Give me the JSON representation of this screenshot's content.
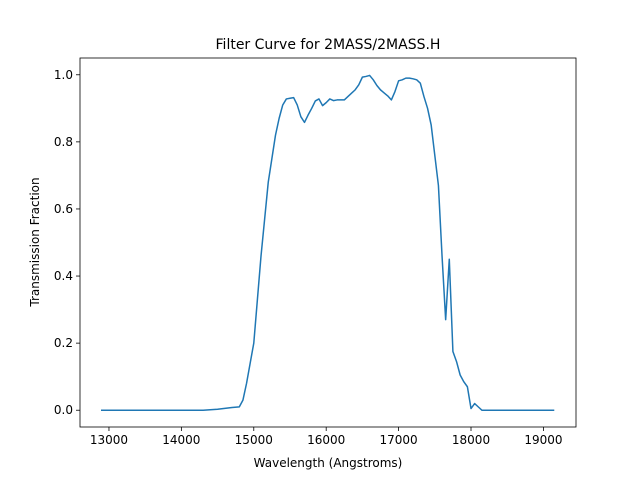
{
  "chart_data": {
    "type": "line",
    "title": "Filter Curve for 2MASS/2MASS.H",
    "xlabel": "Wavelength (Angstroms)",
    "ylabel": "Transmission Fraction",
    "xlim": [
      12600,
      19450
    ],
    "ylim": [
      -0.05,
      1.05
    ],
    "xticks": [
      13000,
      14000,
      15000,
      16000,
      17000,
      18000,
      19000
    ],
    "yticks": [
      0.0,
      0.2,
      0.4,
      0.6,
      0.8,
      1.0
    ],
    "xtick_labels": [
      "13000",
      "14000",
      "15000",
      "16000",
      "17000",
      "18000",
      "19000"
    ],
    "ytick_labels": [
      "0.0",
      "0.2",
      "0.4",
      "0.6",
      "0.8",
      "1.0"
    ],
    "grid": false,
    "line_color": "#1f77b4",
    "series": [
      {
        "x": [
          12890,
          13500,
          14000,
          14300,
          14500,
          14700,
          14800,
          14850,
          14900,
          14950,
          15000,
          15050,
          15100,
          15150,
          15200,
          15250,
          15300,
          15350,
          15400,
          15450,
          15500,
          15550,
          15600,
          15650,
          15700,
          15750,
          15800,
          15850,
          15900,
          15950,
          16000,
          16050,
          16100,
          16150,
          16200,
          16250,
          16300,
          16350,
          16400,
          16450,
          16500,
          16550,
          16600,
          16650,
          16700,
          16750,
          16800,
          16850,
          16900,
          16950,
          17000,
          17050,
          17100,
          17150,
          17200,
          17250,
          17300,
          17350,
          17400,
          17450,
          17500,
          17550,
          17600,
          17650,
          17700,
          17750,
          17800,
          17850,
          17900,
          17950,
          18000,
          18050,
          18100,
          18150,
          18200,
          18250,
          18300,
          18500,
          19000,
          19150
        ],
        "y": [
          0.0,
          0.0,
          0.0,
          0.0,
          0.003,
          0.008,
          0.01,
          0.03,
          0.08,
          0.14,
          0.2,
          0.33,
          0.46,
          0.57,
          0.68,
          0.75,
          0.82,
          0.87,
          0.91,
          0.928,
          0.93,
          0.932,
          0.91,
          0.875,
          0.858,
          0.88,
          0.9,
          0.922,
          0.928,
          0.908,
          0.917,
          0.928,
          0.923,
          0.925,
          0.925,
          0.925,
          0.935,
          0.945,
          0.955,
          0.97,
          0.993,
          0.995,
          0.998,
          0.985,
          0.968,
          0.955,
          0.946,
          0.937,
          0.925,
          0.95,
          0.982,
          0.985,
          0.99,
          0.99,
          0.988,
          0.985,
          0.975,
          0.935,
          0.9,
          0.85,
          0.76,
          0.67,
          0.46,
          0.27,
          0.45,
          0.175,
          0.145,
          0.105,
          0.085,
          0.07,
          0.005,
          0.02,
          0.01,
          0.0,
          0.0,
          0.0,
          0.0,
          0.0,
          0.0,
          0.0
        ]
      }
    ]
  }
}
